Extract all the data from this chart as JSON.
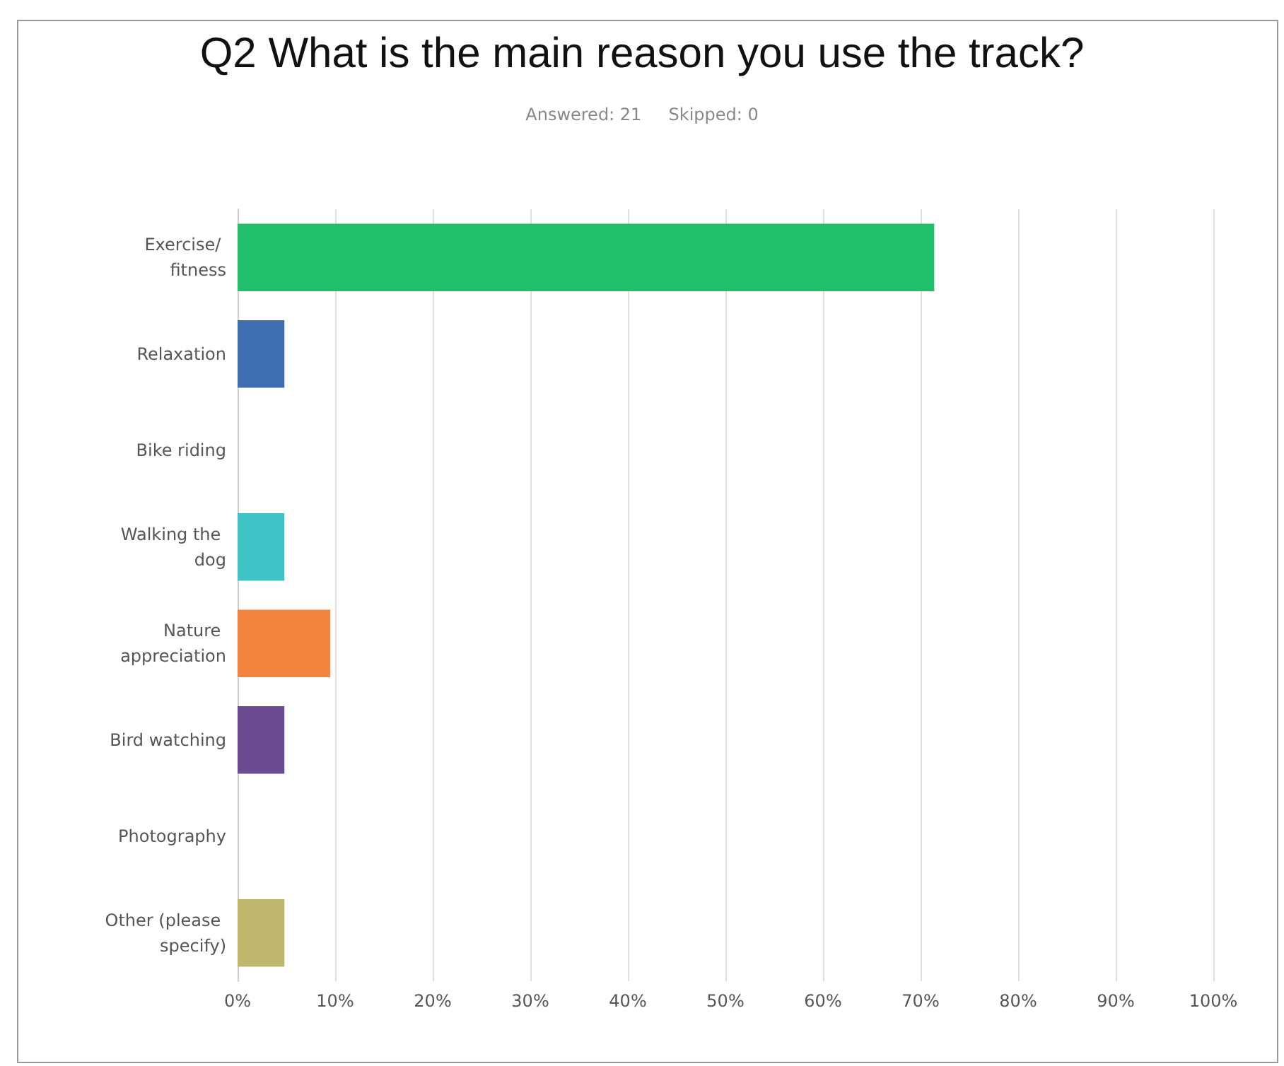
{
  "chart_data": {
    "type": "bar",
    "orientation": "horizontal",
    "title": "Q2 What is the main reason you use the track?",
    "subtitle": "Answered: 21     Skipped: 0",
    "categories": [
      "Exercise/ fitness",
      "Relaxation",
      "Bike riding",
      "Walking the dog",
      "Nature appreciation",
      "Bird watching",
      "Photography",
      "Other (please specify)"
    ],
    "values": [
      71.4,
      4.8,
      0,
      4.8,
      9.5,
      4.8,
      0,
      4.8
    ],
    "colors": [
      "#1fbf6c",
      "#3e6db2",
      "#7e7e7e",
      "#3fc2c6",
      "#f5843c",
      "#6b4c93",
      "#8a8a8a",
      "#bfb86c"
    ],
    "xlim": [
      0,
      100
    ],
    "xticks": [
      {
        "value": 0,
        "label": "0%"
      },
      {
        "value": 10,
        "label": "10%"
      },
      {
        "value": 20,
        "label": "20%"
      },
      {
        "value": 30,
        "label": "30%"
      },
      {
        "value": 40,
        "label": "40%"
      },
      {
        "value": 50,
        "label": "50%"
      },
      {
        "value": 60,
        "label": "60%"
      },
      {
        "value": 70,
        "label": "70%"
      },
      {
        "value": 80,
        "label": "80%"
      },
      {
        "value": 90,
        "label": "90%"
      },
      {
        "value": 100,
        "label": "100%"
      }
    ],
    "grid": "x"
  }
}
